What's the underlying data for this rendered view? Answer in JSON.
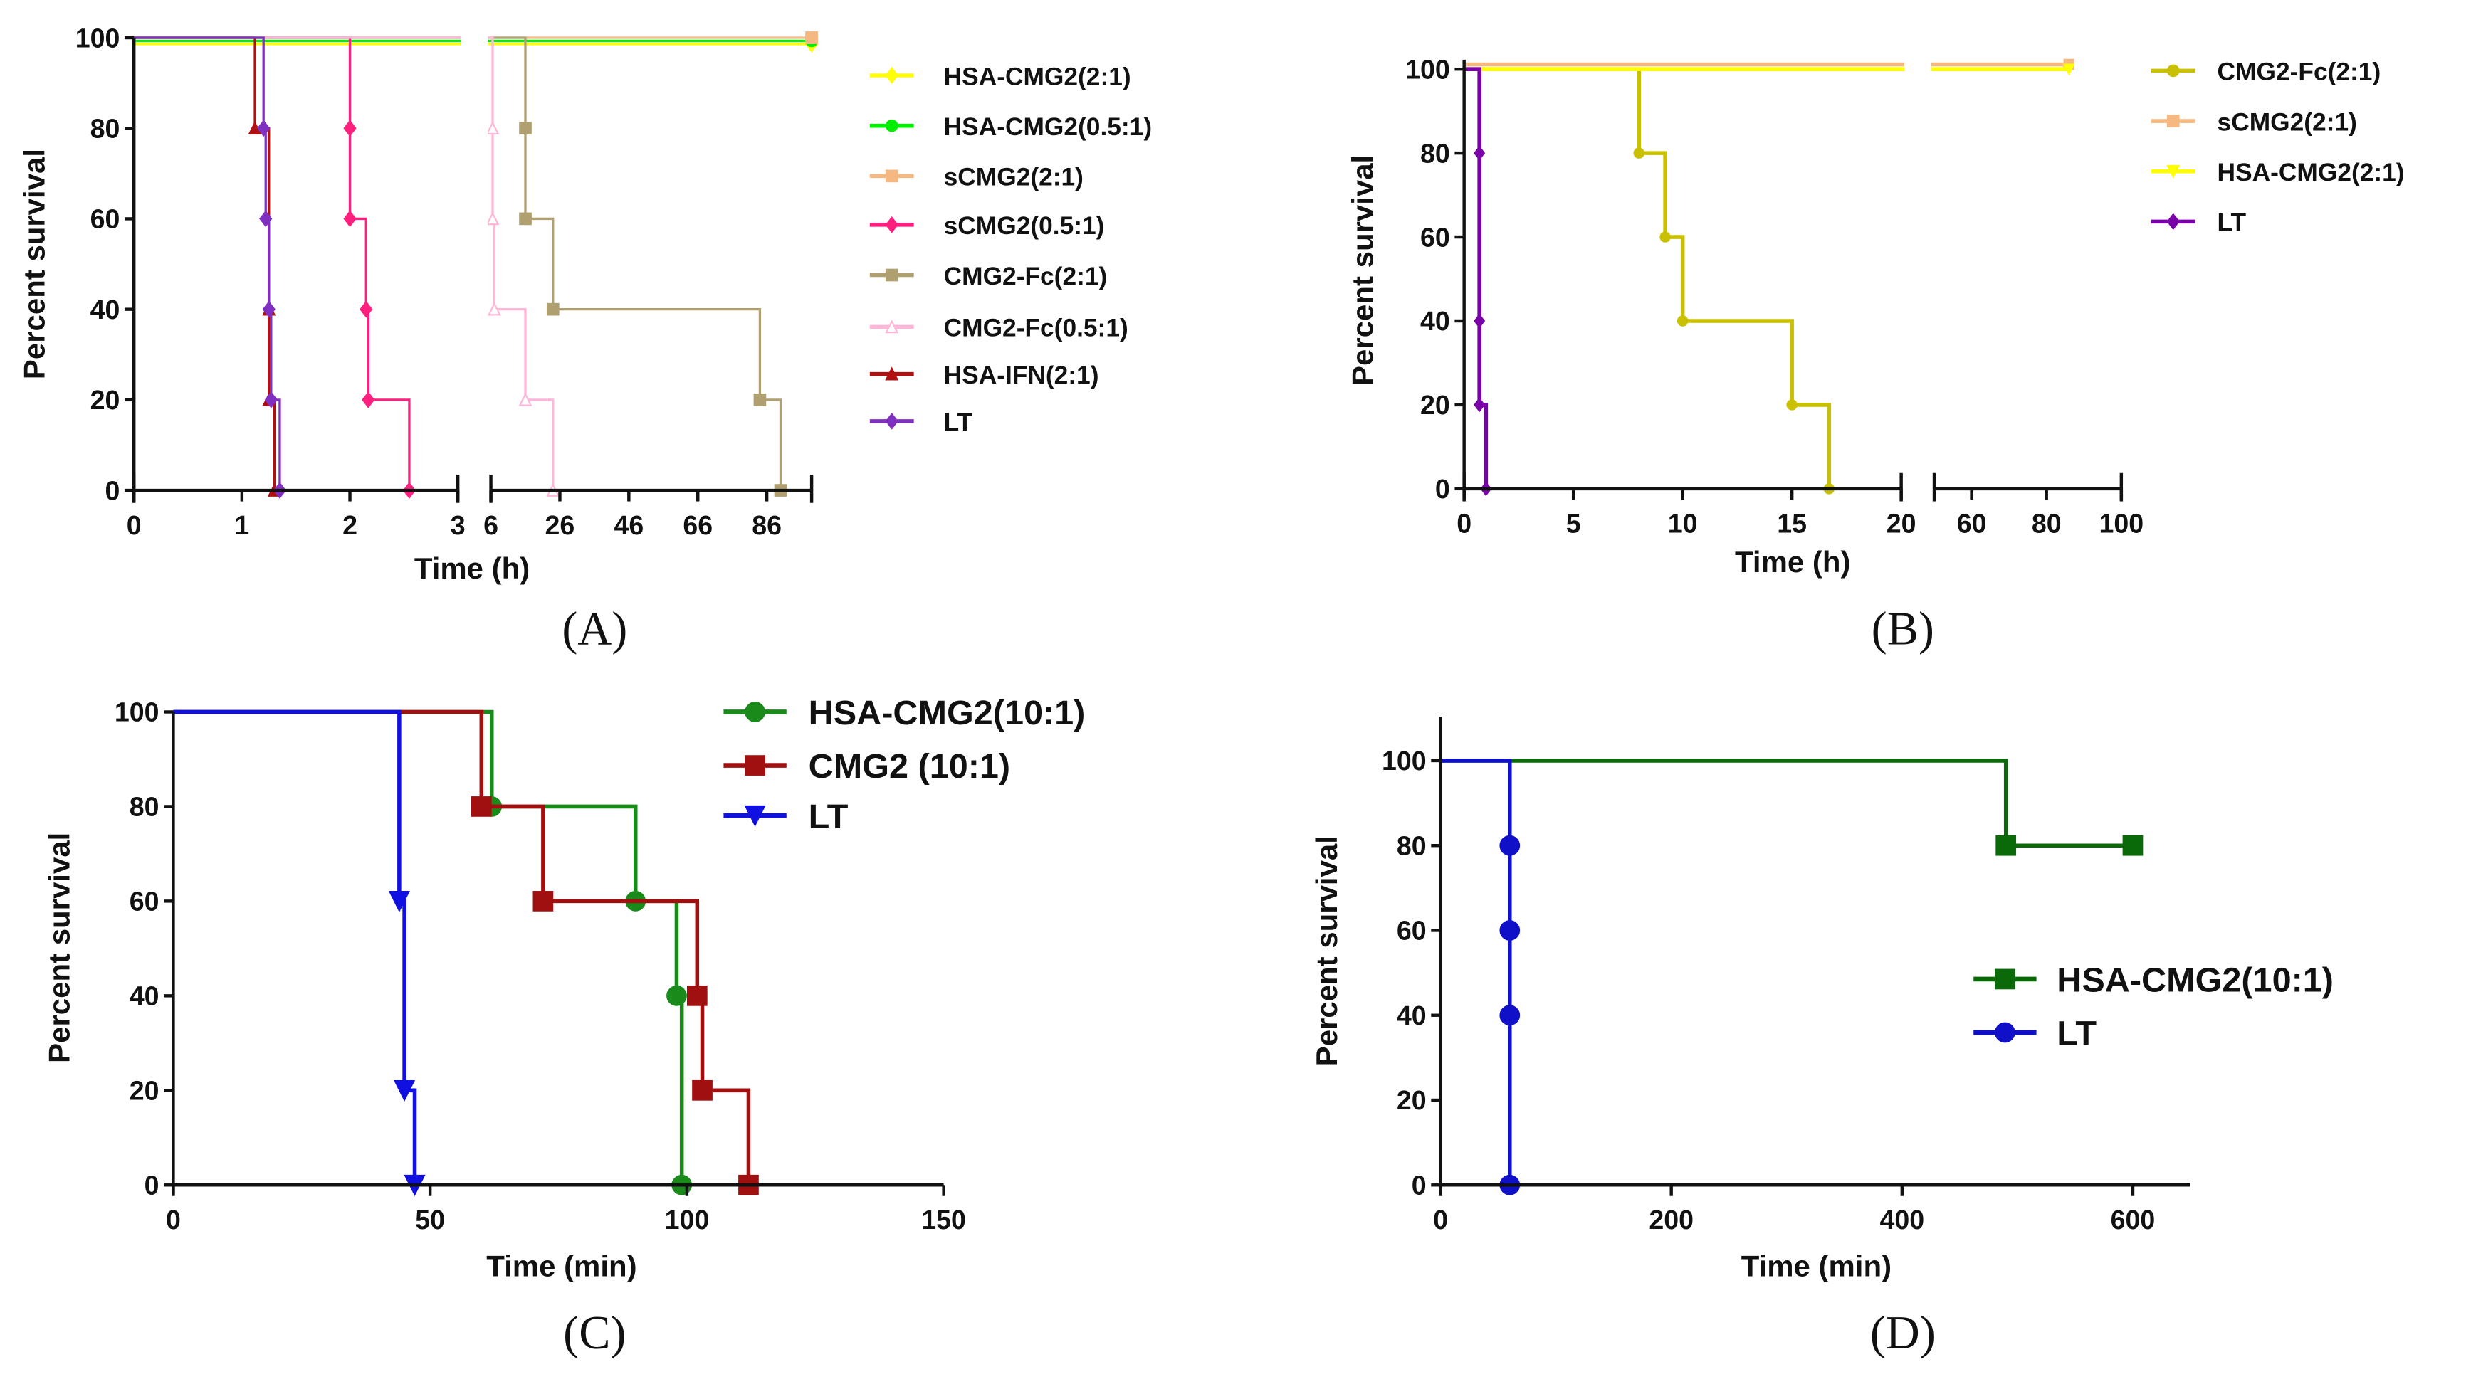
{
  "chart_data": [
    {
      "panel": "(A)",
      "type": "line",
      "title": "",
      "xlabel": "Time (h)",
      "ylabel": "Percent survival",
      "ylim": [
        0,
        100
      ],
      "x_segments": [
        [
          0,
          3
        ],
        [
          6,
          99
        ]
      ],
      "xticks": [
        "0",
        "1",
        "2",
        "3",
        "6",
        "26",
        "46",
        "66",
        "86"
      ],
      "yticks": [
        "0",
        "20",
        "40",
        "60",
        "80",
        "100"
      ],
      "legend_position": "right",
      "series": [
        {
          "name": "HSA-CMG2(2:1)",
          "color": "#ffff00",
          "marker": "diamond",
          "points": [
            [
              0,
              100
            ],
            [
              99,
              100
            ]
          ]
        },
        {
          "name": "HSA-CMG2(0.5:1)",
          "color": "#00ee00",
          "marker": "circle",
          "points": [
            [
              0,
              100
            ],
            [
              99,
              100
            ]
          ]
        },
        {
          "name": "sCMG2(2:1)",
          "color": "#f5b880",
          "marker": "square",
          "points": [
            [
              0,
              100
            ],
            [
              99,
              100
            ]
          ]
        },
        {
          "name": "sCMG2(0.5:1)",
          "color": "#ff1f7f",
          "marker": "diamond",
          "points": [
            [
              0,
              100
            ],
            [
              2,
              80
            ],
            [
              2,
              60
            ],
            [
              2.15,
              40
            ],
            [
              2.17,
              20
            ],
            [
              2.55,
              0
            ]
          ]
        },
        {
          "name": "CMG2-Fc(2:1)",
          "color": "#b0a070",
          "marker": "square",
          "points": [
            [
              0,
              100
            ],
            [
              16,
              80
            ],
            [
              16,
              60
            ],
            [
              24,
              40
            ],
            [
              84,
              20
            ],
            [
              90,
              0
            ]
          ]
        },
        {
          "name": "CMG2-Fc(0.5:1)",
          "color": "#ffb6d9",
          "marker": "triangle-open",
          "points": [
            [
              0,
              100
            ],
            [
              6.5,
              80
            ],
            [
              6.5,
              60
            ],
            [
              7,
              40
            ],
            [
              16,
              20
            ],
            [
              24,
              0
            ]
          ]
        },
        {
          "name": "HSA-IFN(2:1)",
          "color": "#b01010",
          "marker": "triangle",
          "points": [
            [
              0,
              100
            ],
            [
              1.12,
              80
            ],
            [
              1.25,
              40
            ],
            [
              1.25,
              20
            ],
            [
              1.3,
              0
            ]
          ]
        },
        {
          "name": "LT",
          "color": "#8030c0",
          "marker": "star",
          "points": [
            [
              0,
              100
            ],
            [
              1.2,
              80
            ],
            [
              1.22,
              60
            ],
            [
              1.25,
              40
            ],
            [
              1.27,
              20
            ],
            [
              1.35,
              0
            ]
          ]
        }
      ]
    },
    {
      "panel": "(B)",
      "type": "line",
      "title": "",
      "xlabel": "Time (h)",
      "ylabel": "Percent survival",
      "ylim": [
        0,
        105
      ],
      "x_segments": [
        [
          0,
          20
        ],
        [
          50,
          100
        ]
      ],
      "xticks": [
        "0",
        "5",
        "10",
        "15",
        "20",
        "60",
        "80",
        "100"
      ],
      "yticks": [
        "0",
        "20",
        "40",
        "60",
        "80",
        "100"
      ],
      "legend_position": "right",
      "series": [
        {
          "name": "CMG2-Fc(2:1)",
          "color": "#c8c000",
          "marker": "circle",
          "points": [
            [
              0,
              100
            ],
            [
              8,
              80
            ],
            [
              9.2,
              60
            ],
            [
              10,
              40
            ],
            [
              15,
              20
            ],
            [
              16.7,
              0
            ]
          ]
        },
        {
          "name": "sCMG2(2:1)",
          "color": "#f5b880",
          "marker": "square",
          "points": [
            [
              0,
              100
            ],
            [
              86,
              100
            ]
          ]
        },
        {
          "name": "HSA-CMG2(2:1)",
          "color": "#ffff00",
          "marker": "triangle-down",
          "points": [
            [
              0,
              100
            ],
            [
              86,
              100
            ]
          ]
        },
        {
          "name": "LT",
          "color": "#7a00a8",
          "marker": "diamond",
          "points": [
            [
              0,
              100
            ],
            [
              0.7,
              80
            ],
            [
              0.7,
              40
            ],
            [
              0.7,
              20
            ],
            [
              1,
              0
            ]
          ]
        }
      ]
    },
    {
      "panel": "(C)",
      "type": "line",
      "title": "",
      "xlabel": "Time (min)",
      "ylabel": "Percent survival",
      "ylim": [
        0,
        100
      ],
      "xlim": [
        0,
        150
      ],
      "xticks": [
        "0",
        "50",
        "100",
        "150"
      ],
      "yticks": [
        "0",
        "20",
        "40",
        "60",
        "80",
        "100"
      ],
      "legend_position": "top-right",
      "series": [
        {
          "name": "HSA-CMG2(10:1)",
          "color": "#1a8a1a",
          "marker": "circle",
          "points": [
            [
              0,
              100
            ],
            [
              62,
              80
            ],
            [
              90,
              60
            ],
            [
              98,
              40
            ],
            [
              99,
              0
            ]
          ]
        },
        {
          "name": "CMG2 (10:1)",
          "color": "#a01010",
          "marker": "square",
          "points": [
            [
              0,
              100
            ],
            [
              60,
              80
            ],
            [
              72,
              60
            ],
            [
              102,
              40
            ],
            [
              103,
              20
            ],
            [
              112,
              0
            ]
          ]
        },
        {
          "name": "LT",
          "color": "#1010e0",
          "marker": "triangle-down",
          "points": [
            [
              0,
              100
            ],
            [
              44,
              60
            ],
            [
              45,
              20
            ],
            [
              47,
              0
            ]
          ]
        }
      ]
    },
    {
      "panel": "(D)",
      "type": "line",
      "title": "",
      "xlabel": "Time (min)",
      "ylabel": "Percent survival",
      "ylim": [
        0,
        110
      ],
      "xlim": [
        0,
        650
      ],
      "xticks": [
        "0",
        "200",
        "400",
        "600"
      ],
      "yticks": [
        "0",
        "20",
        "40",
        "60",
        "80",
        "100"
      ],
      "legend_position": "right",
      "series": [
        {
          "name": "HSA-CMG2(10:1)",
          "color": "#0a6a0a",
          "marker": "square",
          "points": [
            [
              0,
              100
            ],
            [
              490,
              80
            ],
            [
              600,
              80
            ]
          ]
        },
        {
          "name": "LT",
          "color": "#1010c8",
          "marker": "circle",
          "points": [
            [
              0,
              100
            ],
            [
              60,
              80
            ],
            [
              60,
              60
            ],
            [
              60,
              40
            ],
            [
              60,
              0
            ]
          ]
        }
      ]
    }
  ]
}
